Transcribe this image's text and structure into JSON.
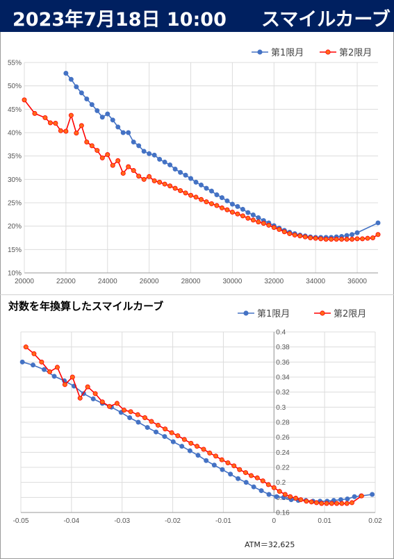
{
  "header": {
    "datetime": "2023年7月18日 10:00",
    "title": "スマイルカーブ"
  },
  "subtitle": "対数を年換算したスマイルカーブ",
  "atm_label": "ATM＝32,625",
  "colors": {
    "series1": "#4472c4",
    "series2": "#ff0000",
    "series2_fill": "#ff6a1a",
    "header_bg": "#002060"
  },
  "chart_data": [
    {
      "type": "line",
      "title": "",
      "xlim": [
        20000,
        37000
      ],
      "ylim": [
        0.1,
        0.55
      ],
      "xticks": [
        20000,
        22000,
        24000,
        26000,
        28000,
        30000,
        32000,
        34000,
        36000
      ],
      "xtick_labels": [
        "20000",
        "22000",
        "24000",
        "26000",
        "28000",
        "30000",
        "32000",
        "34000",
        "36000"
      ],
      "yticks": [
        0.1,
        0.15,
        0.2,
        0.25,
        0.3,
        0.35,
        0.4,
        0.45,
        0.5,
        0.55
      ],
      "ytick_labels": [
        "10%",
        "15%",
        "20%",
        "25%",
        "30%",
        "35%",
        "40%",
        "45%",
        "50%",
        "55%"
      ],
      "grid": true,
      "legend": "top-right",
      "series": [
        {
          "name": "第1限月",
          "points": [
            [
              22000,
              0.527
            ],
            [
              22250,
              0.514
            ],
            [
              22500,
              0.498
            ],
            [
              22750,
              0.485
            ],
            [
              23000,
              0.472
            ],
            [
              23250,
              0.46
            ],
            [
              23500,
              0.447
            ],
            [
              23750,
              0.433
            ],
            [
              24000,
              0.44
            ],
            [
              24250,
              0.427
            ],
            [
              24500,
              0.412
            ],
            [
              24750,
              0.4
            ],
            [
              25000,
              0.4
            ],
            [
              25250,
              0.38
            ],
            [
              25500,
              0.372
            ],
            [
              25750,
              0.36
            ],
            [
              26000,
              0.355
            ],
            [
              26250,
              0.352
            ],
            [
              26500,
              0.343
            ],
            [
              26750,
              0.337
            ],
            [
              27000,
              0.331
            ],
            [
              27250,
              0.322
            ],
            [
              27500,
              0.315
            ],
            [
              27750,
              0.309
            ],
            [
              28000,
              0.302
            ],
            [
              28250,
              0.294
            ],
            [
              28500,
              0.288
            ],
            [
              28750,
              0.281
            ],
            [
              29000,
              0.275
            ],
            [
              29250,
              0.267
            ],
            [
              29500,
              0.261
            ],
            [
              29750,
              0.254
            ],
            [
              30000,
              0.247
            ],
            [
              30250,
              0.242
            ],
            [
              30500,
              0.236
            ],
            [
              30750,
              0.229
            ],
            [
              31000,
              0.224
            ],
            [
              31250,
              0.218
            ],
            [
              31500,
              0.212
            ],
            [
              31750,
              0.207
            ],
            [
              32000,
              0.201
            ],
            [
              32250,
              0.196
            ],
            [
              32500,
              0.191
            ],
            [
              32750,
              0.187
            ],
            [
              33000,
              0.184
            ],
            [
              33250,
              0.181
            ],
            [
              33500,
              0.179
            ],
            [
              33750,
              0.177
            ],
            [
              34000,
              0.176
            ],
            [
              34250,
              0.176
            ],
            [
              34500,
              0.176
            ],
            [
              34750,
              0.176
            ],
            [
              35000,
              0.177
            ],
            [
              35250,
              0.178
            ],
            [
              35500,
              0.18
            ],
            [
              35750,
              0.182
            ],
            [
              36000,
              0.186
            ],
            [
              37000,
              0.207
            ]
          ]
        },
        {
          "name": "第2限月",
          "points": [
            [
              20000,
              0.47
            ],
            [
              20500,
              0.441
            ],
            [
              21000,
              0.432
            ],
            [
              21250,
              0.421
            ],
            [
              21500,
              0.42
            ],
            [
              21750,
              0.404
            ],
            [
              22000,
              0.403
            ],
            [
              22250,
              0.437
            ],
            [
              22500,
              0.399
            ],
            [
              22750,
              0.415
            ],
            [
              23000,
              0.38
            ],
            [
              23250,
              0.372
            ],
            [
              23500,
              0.362
            ],
            [
              23750,
              0.346
            ],
            [
              24000,
              0.353
            ],
            [
              24250,
              0.33
            ],
            [
              24500,
              0.34
            ],
            [
              24750,
              0.313
            ],
            [
              25000,
              0.327
            ],
            [
              25250,
              0.319
            ],
            [
              25500,
              0.307
            ],
            [
              25750,
              0.3
            ],
            [
              26000,
              0.306
            ],
            [
              26250,
              0.297
            ],
            [
              26500,
              0.294
            ],
            [
              26750,
              0.29
            ],
            [
              27000,
              0.286
            ],
            [
              27250,
              0.281
            ],
            [
              27500,
              0.276
            ],
            [
              27750,
              0.271
            ],
            [
              28000,
              0.266
            ],
            [
              28250,
              0.262
            ],
            [
              28500,
              0.257
            ],
            [
              28750,
              0.252
            ],
            [
              29000,
              0.248
            ],
            [
              29250,
              0.244
            ],
            [
              29500,
              0.239
            ],
            [
              29750,
              0.235
            ],
            [
              30000,
              0.23
            ],
            [
              30250,
              0.226
            ],
            [
              30500,
              0.222
            ],
            [
              30750,
              0.217
            ],
            [
              31000,
              0.213
            ],
            [
              31250,
              0.209
            ],
            [
              31500,
              0.206
            ],
            [
              31750,
              0.202
            ],
            [
              32000,
              0.197
            ],
            [
              32250,
              0.193
            ],
            [
              32500,
              0.188
            ],
            [
              32750,
              0.184
            ],
            [
              33000,
              0.181
            ],
            [
              33250,
              0.179
            ],
            [
              33500,
              0.177
            ],
            [
              33750,
              0.175
            ],
            [
              34000,
              0.174
            ],
            [
              34250,
              0.173
            ],
            [
              34500,
              0.172
            ],
            [
              34750,
              0.172
            ],
            [
              35000,
              0.172
            ],
            [
              35250,
              0.172
            ],
            [
              35500,
              0.172
            ],
            [
              35750,
              0.172
            ],
            [
              36000,
              0.173
            ],
            [
              36250,
              0.173
            ],
            [
              36500,
              0.174
            ],
            [
              36750,
              0.175
            ],
            [
              37000,
              0.182
            ]
          ]
        }
      ]
    },
    {
      "type": "line",
      "title": "",
      "xlim": [
        -0.05,
        0.02
      ],
      "ylim": [
        0.16,
        0.4
      ],
      "xticks": [
        -0.05,
        -0.04,
        -0.03,
        -0.02,
        -0.01,
        0,
        0.01,
        0.02
      ],
      "xtick_labels": [
        "-0.05",
        "-0.04",
        "-0.03",
        "-0.02",
        "-0.01",
        "0",
        "0.01",
        "0.02"
      ],
      "yticks": [
        0.16,
        0.18,
        0.2,
        0.22,
        0.24,
        0.26,
        0.28,
        0.3,
        0.32,
        0.34,
        0.36,
        0.38,
        0.4
      ],
      "ytick_labels": [
        "0.16",
        "0.18",
        "0.2",
        "0.22",
        "0.24",
        "0.26",
        "0.28",
        "0.3",
        "0.32",
        "0.34",
        "0.36",
        "0.38",
        "0.4"
      ],
      "grid": true,
      "legend": "top-right",
      "series": [
        {
          "name": "第1限月",
          "points": [
            [
              -0.0497,
              0.36
            ],
            [
              -0.0476,
              0.356
            ],
            [
              -0.0454,
              0.35
            ],
            [
              -0.0434,
              0.341
            ],
            [
              -0.0414,
              0.335
            ],
            [
              -0.0395,
              0.328
            ],
            [
              -0.0376,
              0.318
            ],
            [
              -0.0357,
              0.311
            ],
            [
              -0.0339,
              0.305
            ],
            [
              -0.0321,
              0.3
            ],
            [
              -0.0302,
              0.293
            ],
            [
              -0.0285,
              0.286
            ],
            [
              -0.0268,
              0.28
            ],
            [
              -0.025,
              0.273
            ],
            [
              -0.0233,
              0.267
            ],
            [
              -0.0216,
              0.261
            ],
            [
              -0.0199,
              0.254
            ],
            [
              -0.0182,
              0.248
            ],
            [
              -0.0166,
              0.242
            ],
            [
              -0.015,
              0.236
            ],
            [
              -0.0134,
              0.229
            ],
            [
              -0.0118,
              0.223
            ],
            [
              -0.0102,
              0.217
            ],
            [
              -0.0086,
              0.211
            ],
            [
              -0.0071,
              0.205
            ],
            [
              -0.0055,
              0.2
            ],
            [
              -0.004,
              0.194
            ],
            [
              -0.0025,
              0.189
            ],
            [
              -0.001,
              0.184
            ],
            [
              0.0005,
              0.181
            ],
            [
              0.0019,
              0.18
            ],
            [
              0.0034,
              0.177
            ],
            [
              0.0048,
              0.176
            ],
            [
              0.0063,
              0.176
            ],
            [
              0.0077,
              0.175
            ],
            [
              0.0091,
              0.175
            ],
            [
              0.0105,
              0.175
            ],
            [
              0.0118,
              0.176
            ],
            [
              0.0132,
              0.177
            ],
            [
              0.0145,
              0.178
            ],
            [
              0.0159,
              0.181
            ],
            [
              0.0172,
              0.182
            ],
            [
              0.0194,
              0.184
            ]
          ]
        },
        {
          "name": "第2限月",
          "points": [
            [
              -0.049,
              0.38
            ],
            [
              -0.0474,
              0.371
            ],
            [
              -0.0459,
              0.36
            ],
            [
              -0.0443,
              0.347
            ],
            [
              -0.0428,
              0.353
            ],
            [
              -0.0413,
              0.33
            ],
            [
              -0.0398,
              0.34
            ],
            [
              -0.0383,
              0.312
            ],
            [
              -0.0368,
              0.327
            ],
            [
              -0.0353,
              0.318
            ],
            [
              -0.0339,
              0.307
            ],
            [
              -0.0325,
              0.301
            ],
            [
              -0.031,
              0.305
            ],
            [
              -0.0296,
              0.296
            ],
            [
              -0.0283,
              0.294
            ],
            [
              -0.0269,
              0.29
            ],
            [
              -0.0255,
              0.286
            ],
            [
              -0.0242,
              0.281
            ],
            [
              -0.0229,
              0.276
            ],
            [
              -0.0215,
              0.271
            ],
            [
              -0.0202,
              0.266
            ],
            [
              -0.019,
              0.262
            ],
            [
              -0.0177,
              0.257
            ],
            [
              -0.0164,
              0.252
            ],
            [
              -0.0152,
              0.248
            ],
            [
              -0.0139,
              0.244
            ],
            [
              -0.0127,
              0.239
            ],
            [
              -0.0115,
              0.235
            ],
            [
              -0.0103,
              0.23
            ],
            [
              -0.0091,
              0.226
            ],
            [
              -0.0079,
              0.222
            ],
            [
              -0.0068,
              0.217
            ],
            [
              -0.0056,
              0.213
            ],
            [
              -0.0045,
              0.209
            ],
            [
              -0.0033,
              0.206
            ],
            [
              -0.0022,
              0.202
            ],
            [
              -0.0011,
              0.197
            ],
            [
              0.0,
              0.193
            ],
            [
              0.0011,
              0.188
            ],
            [
              0.0022,
              0.184
            ],
            [
              0.0032,
              0.181
            ],
            [
              0.0043,
              0.179
            ],
            [
              0.0053,
              0.177
            ],
            [
              0.0064,
              0.175
            ],
            [
              0.0074,
              0.174
            ],
            [
              0.0084,
              0.173
            ],
            [
              0.0094,
              0.172
            ],
            [
              0.0104,
              0.172
            ],
            [
              0.0114,
              0.172
            ],
            [
              0.0124,
              0.172
            ],
            [
              0.0134,
              0.172
            ],
            [
              0.0144,
              0.172
            ],
            [
              0.0154,
              0.173
            ],
            [
              0.0173,
              0.182
            ]
          ]
        }
      ]
    }
  ]
}
